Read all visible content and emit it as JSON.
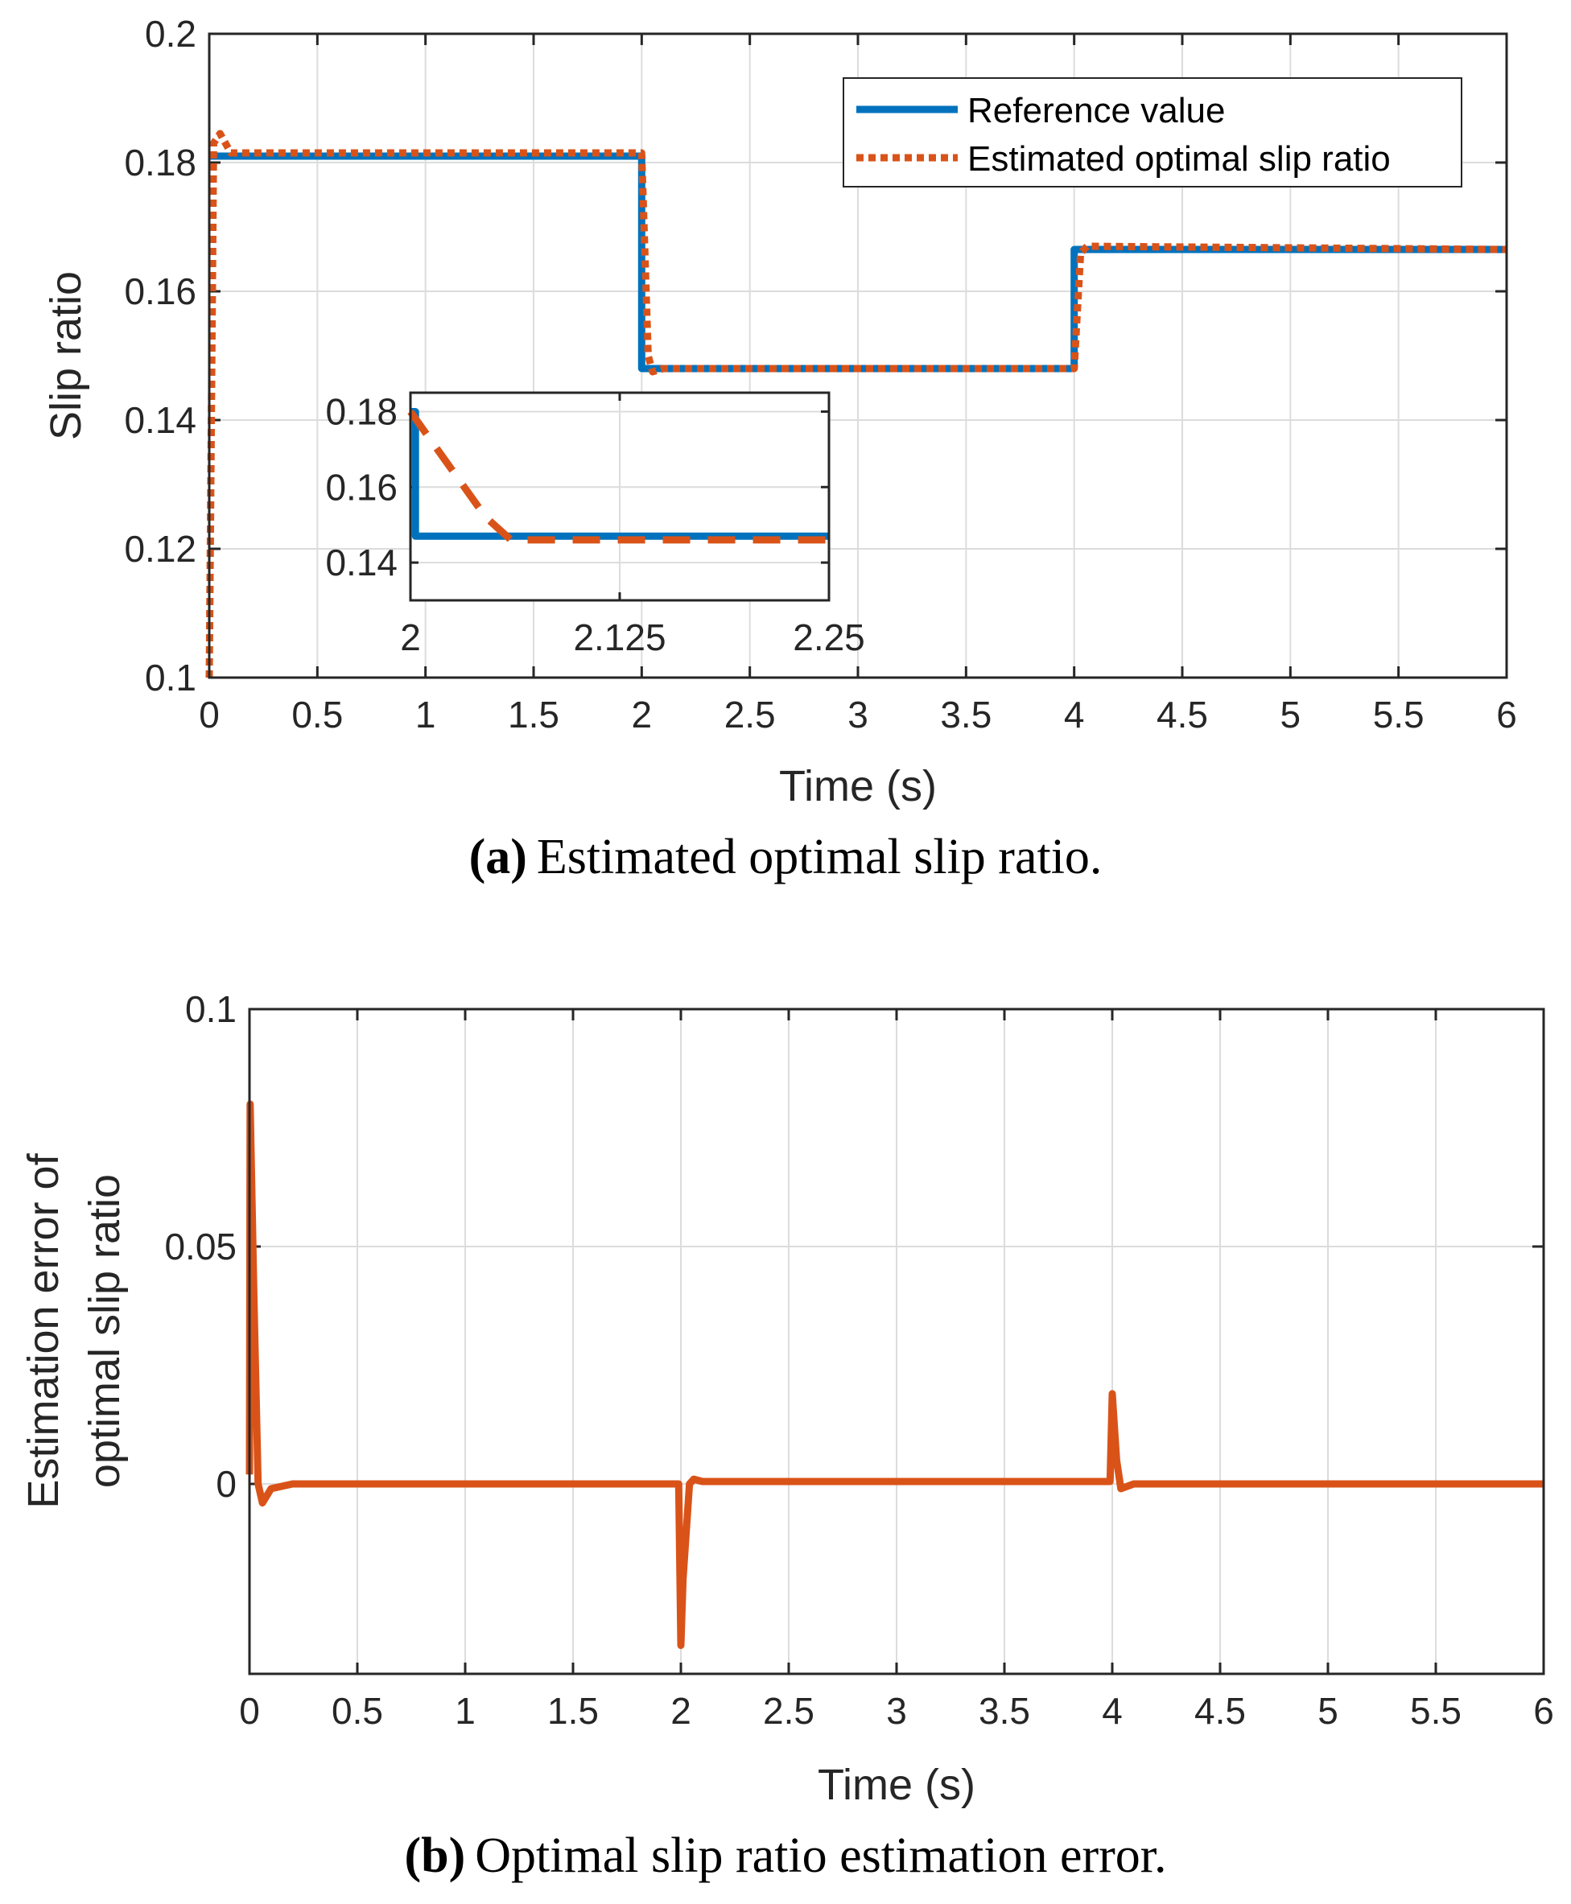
{
  "colors": {
    "reference": "#0072BD",
    "estimate": "#D95319"
  },
  "chart_data": [
    {
      "id": "a",
      "type": "line",
      "title": "",
      "xlabel": "Time (s)",
      "ylabel": "Slip ratio",
      "xlim": [
        0,
        6
      ],
      "ylim": [
        0.1,
        0.2
      ],
      "xticks": [
        "0",
        "0.5",
        "1",
        "1.5",
        "2",
        "2.5",
        "3",
        "3.5",
        "4",
        "4.5",
        "5",
        "5.5",
        "6"
      ],
      "yticks": [
        "0.1",
        "0.12",
        "0.14",
        "0.16",
        "0.18",
        "0.2"
      ],
      "grid": true,
      "legend_position": "top-right",
      "series": [
        {
          "name": "Reference value",
          "style": "solid",
          "x": [
            0,
            2,
            2,
            4,
            4,
            6
          ],
          "y": [
            0.181,
            0.181,
            0.148,
            0.148,
            0.1665,
            0.1665
          ]
        },
        {
          "name": "Estimated optimal slip ratio",
          "style": "dotted",
          "x": [
            0,
            0.02,
            0.05,
            0.1,
            2,
            2.03,
            2.05,
            2.1,
            4,
            4.03,
            4.06,
            6
          ],
          "y": [
            0.1,
            0.183,
            0.1845,
            0.1815,
            0.1815,
            0.15,
            0.1475,
            0.148,
            0.148,
            0.166,
            0.167,
            0.1665
          ]
        }
      ],
      "inset": {
        "xlim": [
          2,
          2.25
        ],
        "ylim": [
          0.13,
          0.185
        ],
        "xticks": [
          "2",
          "2.125",
          "2.25"
        ],
        "yticks": [
          "0.14",
          "0.16",
          "0.18"
        ],
        "series": [
          {
            "name": "Reference value",
            "style": "solid",
            "x": [
              2,
              2.003,
              2.003,
              2.25
            ],
            "y": [
              0.18,
              0.18,
              0.147,
              0.147
            ]
          },
          {
            "name": "Estimated optimal slip ratio",
            "style": "dashed",
            "x": [
              2,
              2.045,
              2.06,
              2.25
            ],
            "y": [
              0.18,
              0.152,
              0.146,
              0.146
            ]
          }
        ]
      },
      "caption_label": "(a)",
      "caption_text": "Estimated optimal slip ratio."
    },
    {
      "id": "b",
      "type": "line",
      "title": "",
      "xlabel": "Time (s)",
      "ylabel_line1": "Estimation error of",
      "ylabel_line2": "optimal slip ratio",
      "xlim": [
        0,
        6
      ],
      "ylim": [
        -0.04,
        0.1
      ],
      "xticks": [
        "0",
        "0.5",
        "1",
        "1.5",
        "2",
        "2.5",
        "3",
        "3.5",
        "4",
        "4.5",
        "5",
        "5.5",
        "6"
      ],
      "yticks": [
        "0",
        "0.05",
        "0.1"
      ],
      "grid": true,
      "series": [
        {
          "name": "Estimation error",
          "style": "solid",
          "x": [
            0,
            0.003,
            0.02,
            0.04,
            0.06,
            0.1,
            0.2,
            1.99,
            2.0,
            2.01,
            2.04,
            2.06,
            2.1,
            3.99,
            4.0,
            4.02,
            4.04,
            4.1,
            6
          ],
          "y": [
            0.002,
            0.08,
            0.04,
            0.0,
            -0.004,
            -0.001,
            0,
            0,
            -0.034,
            -0.02,
            0.0,
            0.001,
            0.0005,
            0.0005,
            0.019,
            0.005,
            -0.001,
            0,
            0
          ]
        }
      ],
      "caption_label": "(b)",
      "caption_text": "Optimal slip ratio estimation error."
    }
  ]
}
